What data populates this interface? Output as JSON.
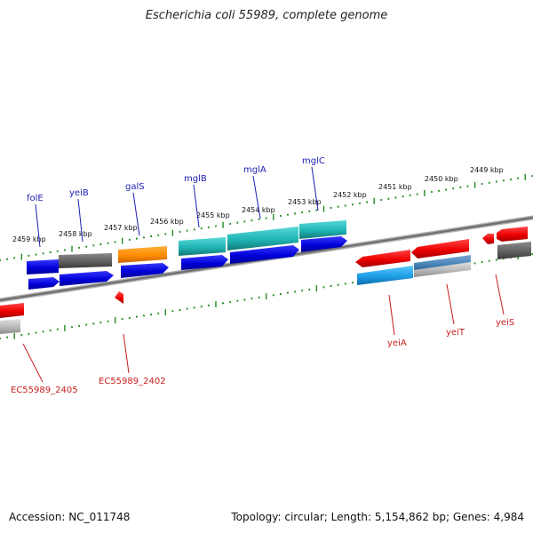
{
  "title": "Escherichia coli 55989, complete genome",
  "footer": {
    "accession": "Accession: NC_011748",
    "stats": "Topology: circular; Length: 5,154,862 bp; Genes: 4,984"
  },
  "colors": {
    "backbone": "#808080",
    "ticks": "#228b22",
    "label_top": "#1c1cb4",
    "label_bottom": "#c81e1e",
    "forward_gene": "#0000e6",
    "reverse_gene": "#f00000",
    "pseudo_gene": "#666666",
    "galS": "#ff8c00",
    "mgl_gene": "#20b2b2",
    "cyan_gene": "#1ea0e6",
    "steel_gene": "#4682b4",
    "light_grey": "#b4b4b4"
  },
  "scale_labels": [
    "2459 kbp",
    "2458 kbp",
    "2457 kbp",
    "2456 kbp",
    "2455 kbp",
    "2454 kbp",
    "2453 kbp",
    "2452 kbp",
    "2451 kbp",
    "2450 kbp",
    "2449 kbp"
  ],
  "top_gene_labels": [
    "folE",
    "yeiB",
    "galS",
    "mglB",
    "mglA",
    "mglC"
  ],
  "bottom_gene_labels": [
    "yeiA",
    "yeiT",
    "yeiS",
    "EC55989_2405",
    "EC55989_2402"
  ]
}
